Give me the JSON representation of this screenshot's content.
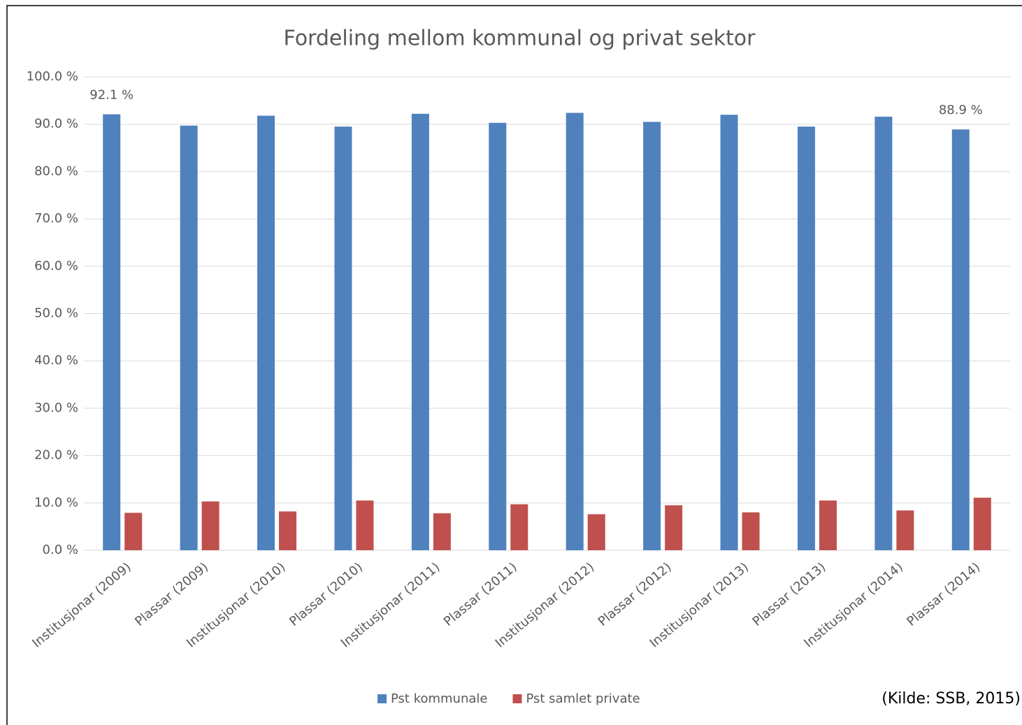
{
  "chart_data": {
    "type": "bar",
    "title": "Fordeling mellom kommunal og privat sektor",
    "source": "(Kilde: SSB, 2015)",
    "categories": [
      "Institusjonar (2009)",
      "Plassar (2009)",
      "Institusjonar (2010)",
      "Plassar (2010)",
      "Institusjonar (2011)",
      "Plassar (2011)",
      "Institusjonar (2012)",
      "Plassar (2012)",
      "Institusjonar (2013)",
      "Plassar (2013)",
      "Institusjonar (2014)",
      "Plassar (2014)"
    ],
    "series": [
      {
        "name": "Pst kommunale",
        "color": "#4f81bd",
        "values": [
          92.1,
          89.7,
          91.8,
          89.5,
          92.2,
          90.3,
          92.4,
          90.5,
          92.0,
          89.5,
          91.6,
          88.9
        ],
        "value_labels": [
          "92.1 %",
          null,
          null,
          null,
          null,
          null,
          null,
          null,
          null,
          null,
          null,
          "88.9 %"
        ]
      },
      {
        "name": "Pst samlet private",
        "color": "#c0504d",
        "values": [
          7.9,
          10.3,
          8.2,
          10.5,
          7.8,
          9.7,
          7.6,
          9.5,
          8.0,
          10.5,
          8.4,
          11.1
        ]
      }
    ],
    "ylim": [
      0,
      100
    ],
    "yticks": [
      {
        "value": 0,
        "label": "0.0 %"
      },
      {
        "value": 10,
        "label": "10.0 %"
      },
      {
        "value": 20,
        "label": "20.0 %"
      },
      {
        "value": 30,
        "label": "30.0 %"
      },
      {
        "value": 40,
        "label": "40.0 %"
      },
      {
        "value": 50,
        "label": "50.0 %"
      },
      {
        "value": 60,
        "label": "60.0 %"
      },
      {
        "value": 70,
        "label": "70.0 %"
      },
      {
        "value": 80,
        "label": "80.0 %"
      },
      {
        "value": 90,
        "label": "90.0 %"
      },
      {
        "value": 100,
        "label": "100.0 %"
      }
    ],
    "grid": true,
    "legend": "bottom"
  }
}
